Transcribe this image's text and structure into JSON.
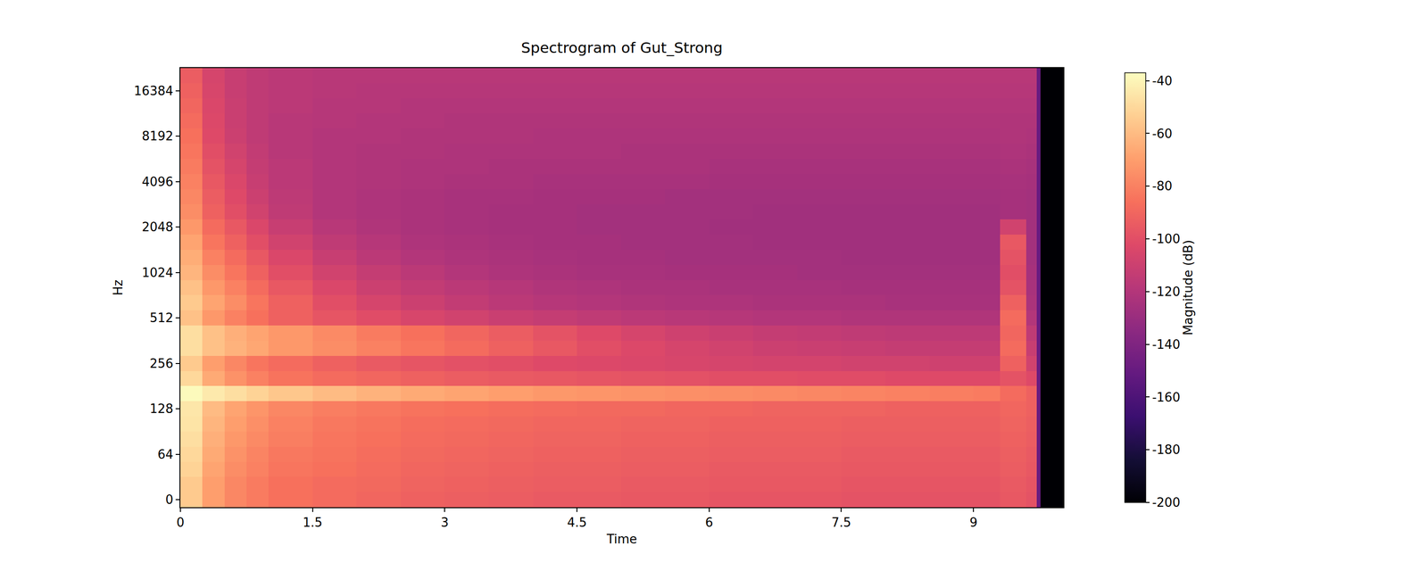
{
  "chart_data": {
    "type": "heatmap",
    "title": "Spectrogram of Gut_Strong",
    "x_label": "Time",
    "y_label": "Hz",
    "xlim": [
      0,
      10.02
    ],
    "xticks": [
      0,
      1.5,
      3,
      4.5,
      6,
      7.5,
      9
    ],
    "time_bins": [
      0,
      0.25,
      0.5,
      0.75,
      1,
      1.5,
      2,
      2.5,
      3,
      3.5,
      4,
      4.5,
      5,
      5.5,
      6,
      6.5,
      7,
      7.5,
      8,
      8.5,
      9,
      9.3,
      9.6,
      9.72,
      9.76,
      10.02
    ],
    "y_categories": [
      "0",
      null,
      null,
      "64",
      null,
      null,
      "128",
      null,
      null,
      "256",
      null,
      null,
      "512",
      null,
      null,
      "1024",
      null,
      null,
      "2048",
      null,
      null,
      "4096",
      null,
      null,
      "8192",
      null,
      null,
      "16384",
      null
    ],
    "color": "magma",
    "colorbar": {
      "label": "Magnitude (dB)",
      "range": [
        -200,
        -37
      ],
      "ticks": [
        -40,
        -60,
        -80,
        -100,
        -120,
        -140,
        -160,
        -180,
        -200
      ]
    },
    "cells": [
      [
        -55,
        -70,
        -78,
        -82,
        -86,
        -88,
        -90,
        -92,
        -93,
        -94,
        -95,
        -95,
        -96,
        -96,
        -97,
        -97,
        -97,
        -98,
        -98,
        -98,
        -98,
        -96,
        -98,
        -150,
        -200
      ],
      [
        -55,
        -70,
        -78,
        -82,
        -86,
        -88,
        -89,
        -91,
        -92,
        -93,
        -94,
        -94,
        -95,
        -95,
        -96,
        -96,
        -96,
        -97,
        -97,
        -97,
        -97,
        -95,
        -97,
        -150,
        -200
      ],
      [
        -52,
        -68,
        -76,
        -80,
        -84,
        -86,
        -88,
        -90,
        -91,
        -92,
        -93,
        -93,
        -94,
        -94,
        -95,
        -95,
        -95,
        -96,
        -96,
        -96,
        -96,
        -94,
        -96,
        -150,
        -200
      ],
      [
        -50,
        -66,
        -74,
        -79,
        -83,
        -85,
        -87,
        -89,
        -90,
        -91,
        -92,
        -92,
        -93,
        -93,
        -94,
        -94,
        -94,
        -95,
        -95,
        -95,
        -95,
        -93,
        -95,
        -150,
        -200
      ],
      [
        -48,
        -64,
        -72,
        -77,
        -81,
        -84,
        -86,
        -88,
        -89,
        -90,
        -91,
        -91,
        -92,
        -92,
        -93,
        -93,
        -93,
        -94,
        -94,
        -94,
        -94,
        -92,
        -94,
        -150,
        -200
      ],
      [
        -46,
        -62,
        -70,
        -75,
        -80,
        -83,
        -85,
        -87,
        -88,
        -89,
        -90,
        -90,
        -91,
        -91,
        -92,
        -92,
        -92,
        -93,
        -93,
        -93,
        -93,
        -91,
        -93,
        -150,
        -200
      ],
      [
        -45,
        -60,
        -68,
        -73,
        -78,
        -81,
        -83,
        -85,
        -86,
        -87,
        -88,
        -89,
        -89,
        -90,
        -90,
        -91,
        -91,
        -91,
        -92,
        -92,
        -92,
        -90,
        -92,
        -150,
        -200
      ],
      [
        -38,
        -44,
        -48,
        -52,
        -56,
        -60,
        -63,
        -66,
        -68,
        -70,
        -72,
        -73,
        -74,
        -75,
        -76,
        -77,
        -78,
        -79,
        -80,
        -81,
        -82,
        -88,
        -92,
        -150,
        -200
      ],
      [
        -50,
        -66,
        -74,
        -80,
        -85,
        -88,
        -90,
        -92,
        -94,
        -95,
        -96,
        -97,
        -98,
        -99,
        -100,
        -100,
        -101,
        -101,
        -102,
        -102,
        -102,
        -98,
        -102,
        -150,
        -200
      ],
      [
        -55,
        -70,
        -78,
        -84,
        -88,
        -92,
        -95,
        -97,
        -99,
        -100,
        -102,
        -103,
        -104,
        -105,
        -106,
        -107,
        -107,
        -108,
        -108,
        -109,
        -109,
        -92,
        -108,
        -150,
        -200
      ],
      [
        -48,
        -58,
        -63,
        -67,
        -72,
        -76,
        -80,
        -84,
        -88,
        -92,
        -96,
        -100,
        -103,
        -106,
        -108,
        -110,
        -111,
        -112,
        -113,
        -113,
        -113,
        -88,
        -112,
        -150,
        -200
      ],
      [
        -48,
        -58,
        -64,
        -68,
        -72,
        -77,
        -82,
        -86,
        -90,
        -94,
        -98,
        -102,
        -106,
        -109,
        -111,
        -113,
        -114,
        -115,
        -116,
        -116,
        -116,
        -90,
        -115,
        -150,
        -200
      ],
      [
        -58,
        -72,
        -80,
        -86,
        -92,
        -97,
        -101,
        -105,
        -108,
        -111,
        -113,
        -115,
        -117,
        -118,
        -119,
        -120,
        -120,
        -121,
        -121,
        -121,
        -121,
        -88,
        -120,
        -150,
        -200
      ],
      [
        -55,
        -68,
        -76,
        -84,
        -92,
        -100,
        -106,
        -110,
        -114,
        -117,
        -119,
        -120,
        -121,
        -122,
        -122,
        -123,
        -123,
        -123,
        -124,
        -124,
        -124,
        -92,
        -123,
        -150,
        -200
      ],
      [
        -58,
        -72,
        -80,
        -88,
        -96,
        -104,
        -110,
        -114,
        -117,
        -119,
        -121,
        -122,
        -123,
        -123,
        -124,
        -124,
        -124,
        -125,
        -125,
        -125,
        -125,
        -98,
        -124,
        -150,
        -200
      ],
      [
        -62,
        -76,
        -84,
        -92,
        -100,
        -108,
        -113,
        -117,
        -120,
        -122,
        -123,
        -124,
        -124,
        -125,
        -125,
        -125,
        -126,
        -126,
        -126,
        -126,
        -126,
        -100,
        -125,
        -150,
        -200
      ],
      [
        -65,
        -80,
        -88,
        -96,
        -104,
        -112,
        -117,
        -120,
        -122,
        -123,
        -124,
        -125,
        -125,
        -126,
        -126,
        -126,
        -126,
        -127,
        -127,
        -127,
        -127,
        -98,
        -126,
        -150,
        -200
      ],
      [
        -68,
        -84,
        -92,
        -100,
        -108,
        -115,
        -119,
        -122,
        -123,
        -124,
        -125,
        -125,
        -126,
        -126,
        -126,
        -127,
        -127,
        -127,
        -127,
        -127,
        -127,
        -96,
        -126,
        -150,
        -200
      ],
      [
        -72,
        -88,
        -96,
        -104,
        -112,
        -118,
        -121,
        -123,
        -124,
        -125,
        -125,
        -126,
        -126,
        -126,
        -127,
        -127,
        -127,
        -127,
        -127,
        -127,
        -127,
        -108,
        -126,
        -150,
        -200
      ],
      [
        -76,
        -92,
        -100,
        -108,
        -115,
        -120,
        -122,
        -123,
        -124,
        -125,
        -125,
        -126,
        -126,
        -126,
        -126,
        -127,
        -127,
        -127,
        -127,
        -127,
        -127,
        -125,
        -126,
        -150,
        -200
      ],
      [
        -78,
        -94,
        -102,
        -110,
        -116,
        -120,
        -122,
        -123,
        -124,
        -124,
        -125,
        -125,
        -125,
        -126,
        -126,
        -126,
        -126,
        -126,
        -126,
        -126,
        -126,
        -125,
        -126,
        -150,
        -200
      ],
      [
        -80,
        -96,
        -104,
        -112,
        -117,
        -120,
        -121,
        -122,
        -123,
        -123,
        -124,
        -124,
        -124,
        -124,
        -125,
        -125,
        -125,
        -125,
        -125,
        -125,
        -125,
        -124,
        -125,
        -150,
        -200
      ],
      [
        -82,
        -98,
        -106,
        -113,
        -117,
        -120,
        -121,
        -122,
        -122,
        -123,
        -123,
        -123,
        -123,
        -123,
        -124,
        -124,
        -124,
        -124,
        -124,
        -124,
        -124,
        -123,
        -124,
        -150,
        -200
      ],
      [
        -84,
        -100,
        -108,
        -114,
        -118,
        -120,
        -121,
        -121,
        -122,
        -122,
        -122,
        -122,
        -123,
        -123,
        -123,
        -123,
        -123,
        -123,
        -123,
        -123,
        -123,
        -122,
        -123,
        -150,
        -200
      ],
      [
        -86,
        -102,
        -110,
        -115,
        -118,
        -120,
        -120,
        -121,
        -121,
        -121,
        -122,
        -122,
        -122,
        -122,
        -122,
        -122,
        -122,
        -122,
        -122,
        -122,
        -122,
        -121,
        -122,
        -150,
        -200
      ],
      [
        -88,
        -103,
        -111,
        -115,
        -118,
        -119,
        -120,
        -120,
        -121,
        -121,
        -121,
        -121,
        -121,
        -121,
        -121,
        -121,
        -121,
        -121,
        -121,
        -121,
        -121,
        -121,
        -121,
        -150,
        -200
      ],
      [
        -90,
        -104,
        -111,
        -115,
        -117,
        -119,
        -119,
        -120,
        -120,
        -120,
        -120,
        -120,
        -120,
        -120,
        -120,
        -120,
        -120,
        -120,
        -120,
        -120,
        -120,
        -120,
        -120,
        -150,
        -200
      ],
      [
        -92,
        -105,
        -112,
        -115,
        -117,
        -118,
        -119,
        -119,
        -119,
        -119,
        -119,
        -119,
        -119,
        -119,
        -119,
        -119,
        -119,
        -119,
        -119,
        -119,
        -119,
        -119,
        -119,
        -150,
        -200
      ],
      [
        -94,
        -106,
        -112,
        -115,
        -117,
        -118,
        -118,
        -118,
        -118,
        -118,
        -118,
        -118,
        -118,
        -118,
        -118,
        -118,
        -118,
        -118,
        -118,
        -118,
        -118,
        -118,
        -118,
        -150,
        -200
      ]
    ]
  }
}
